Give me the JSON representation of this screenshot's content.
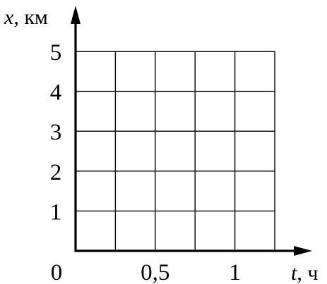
{
  "chart_data": {
    "type": "line",
    "title": "",
    "xlabel": "t, ч",
    "xlabel_var": "t",
    "xlabel_unit": ", ч",
    "ylabel": "x, км",
    "ylabel_var": "x",
    "ylabel_unit": ", км",
    "xlim": [
      0,
      1.25
    ],
    "ylim": [
      0,
      5
    ],
    "x_gridlines": [
      0.25,
      0.5,
      0.75,
      1.0,
      1.25
    ],
    "y_gridlines": [
      1,
      2,
      3,
      4,
      5
    ],
    "x_tick_labels": [
      {
        "value": 0,
        "label": "0"
      },
      {
        "value": 0.5,
        "label": "0,5"
      },
      {
        "value": 1,
        "label": "1"
      }
    ],
    "y_tick_labels": [
      {
        "value": 1,
        "label": "1"
      },
      {
        "value": 2,
        "label": "2"
      },
      {
        "value": 3,
        "label": "3"
      },
      {
        "value": 4,
        "label": "4"
      },
      {
        "value": 5,
        "label": "5"
      }
    ],
    "grid": true,
    "series": [],
    "colors": {
      "axes": "#000000",
      "grid": "#000000",
      "background": "#ffffff"
    }
  }
}
